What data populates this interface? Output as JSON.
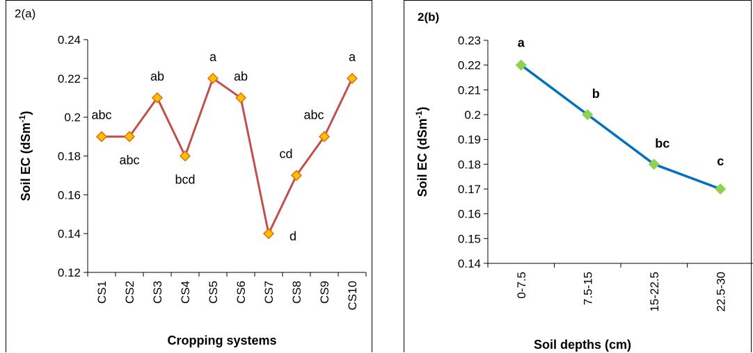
{
  "chart_data": [
    {
      "panel_label": "2(a)",
      "type": "line",
      "categories": [
        "CS1",
        "CS2",
        "CS3",
        "CS4",
        "CS5",
        "CS6",
        "CS7",
        "CS8",
        "CS9",
        "CS10"
      ],
      "values": [
        0.19,
        0.19,
        0.21,
        0.18,
        0.22,
        0.21,
        0.14,
        0.17,
        0.19,
        0.22
      ],
      "annotations": [
        "abc",
        "abc",
        "ab",
        "bcd",
        "a",
        "ab",
        "d",
        "cd",
        "abc",
        "a"
      ],
      "xlabel": "Cropping systems",
      "ylabel": "Soil EC (dSm",
      "ylabel_sup": "-1",
      "ylabel_close": ")",
      "ylim": [
        0.12,
        0.24
      ],
      "yticks": [
        "0.12",
        "0.14",
        "0.16",
        "0.18",
        "0.2",
        "0.22",
        "0.24"
      ],
      "line_color": "#c0504d",
      "marker_fill": "#ffc000",
      "marker_stroke": "#e46c0a",
      "grid": false,
      "bold_labels": false
    },
    {
      "panel_label": "2(b)",
      "type": "line",
      "categories": [
        "0-7.5",
        "7.5-15",
        "15-22.5",
        "22.5-30"
      ],
      "values": [
        0.22,
        0.2,
        0.18,
        0.17
      ],
      "annotations": [
        "a",
        "b",
        "bc",
        "c"
      ],
      "xlabel": "Soil depths (cm)",
      "ylabel": "Soil EC (dSm",
      "ylabel_sup": "-1",
      "ylabel_close": ")",
      "ylim": [
        0.14,
        0.23
      ],
      "yticks": [
        "0.14",
        "0.15",
        "0.16",
        "0.17",
        "0.18",
        "0.19",
        "0.2",
        "0.21",
        "0.22",
        "0.23"
      ],
      "line_color": "#0070c0",
      "marker_fill": "#92d050",
      "marker_stroke": "#92d050",
      "grid": false,
      "bold_labels": true
    }
  ]
}
